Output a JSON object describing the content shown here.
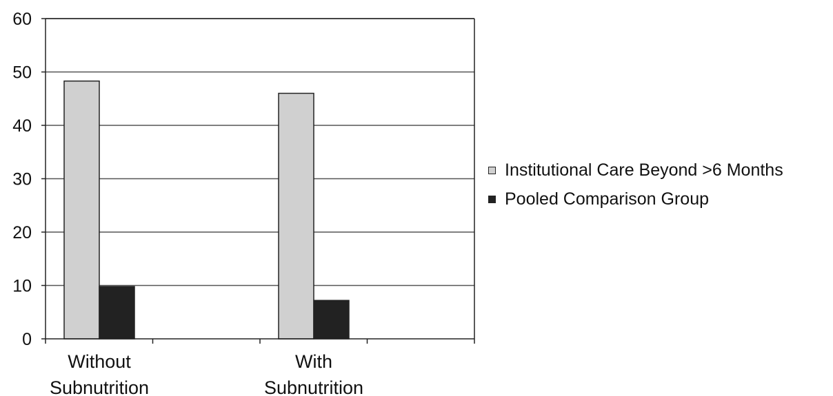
{
  "chart_data": {
    "type": "bar",
    "categories": [
      "Without Subnutrition",
      "With Subnutrition"
    ],
    "category_lines": [
      [
        "Without",
        "Subnutrition"
      ],
      [
        "With",
        "Subnutrition"
      ]
    ],
    "series": [
      {
        "name": "Institutional Care Beyond >6 Months",
        "values": [
          48.3,
          46.0
        ],
        "color": "#d0d0d0"
      },
      {
        "name": "Pooled Comparison Group",
        "values": [
          9.8,
          7.2
        ],
        "color": "#222222"
      }
    ],
    "ylim": [
      0,
      60
    ],
    "yticks": [
      "0",
      "10",
      "20",
      "30",
      "40",
      "50",
      "60"
    ],
    "grid": true,
    "legend": "right",
    "title": "",
    "xlabel": "",
    "ylabel": ""
  }
}
